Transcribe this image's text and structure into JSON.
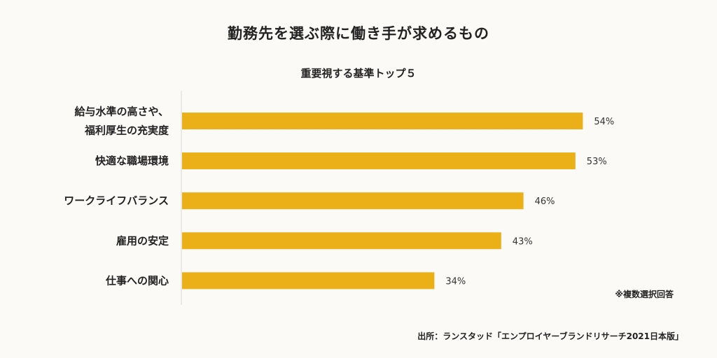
{
  "chart_data": {
    "type": "bar",
    "orientation": "horizontal",
    "title": "勤務先を選ぶ際に働き手が求めるもの",
    "subtitle": "重要視する基準トップ５",
    "categories": [
      [
        "給与水準の高さや、",
        "福利厚生の充実度"
      ],
      [
        "快適な職場環境"
      ],
      [
        "ワークライフバランス"
      ],
      [
        "雇用の安定"
      ],
      [
        "仕事への関心"
      ]
    ],
    "values": [
      54,
      53,
      46,
      43,
      34
    ],
    "value_labels": [
      "54%",
      "53%",
      "46%",
      "43%",
      "34%"
    ],
    "unit": "%",
    "xlim": [
      0,
      100
    ],
    "grid": false,
    "bar_color": "#ebb018",
    "axis_color": "#d8d8d8"
  },
  "note": "※複数選択回答",
  "source": "出所：ランスタッド「エンプロイヤーブランドリサーチ2021日本版」"
}
